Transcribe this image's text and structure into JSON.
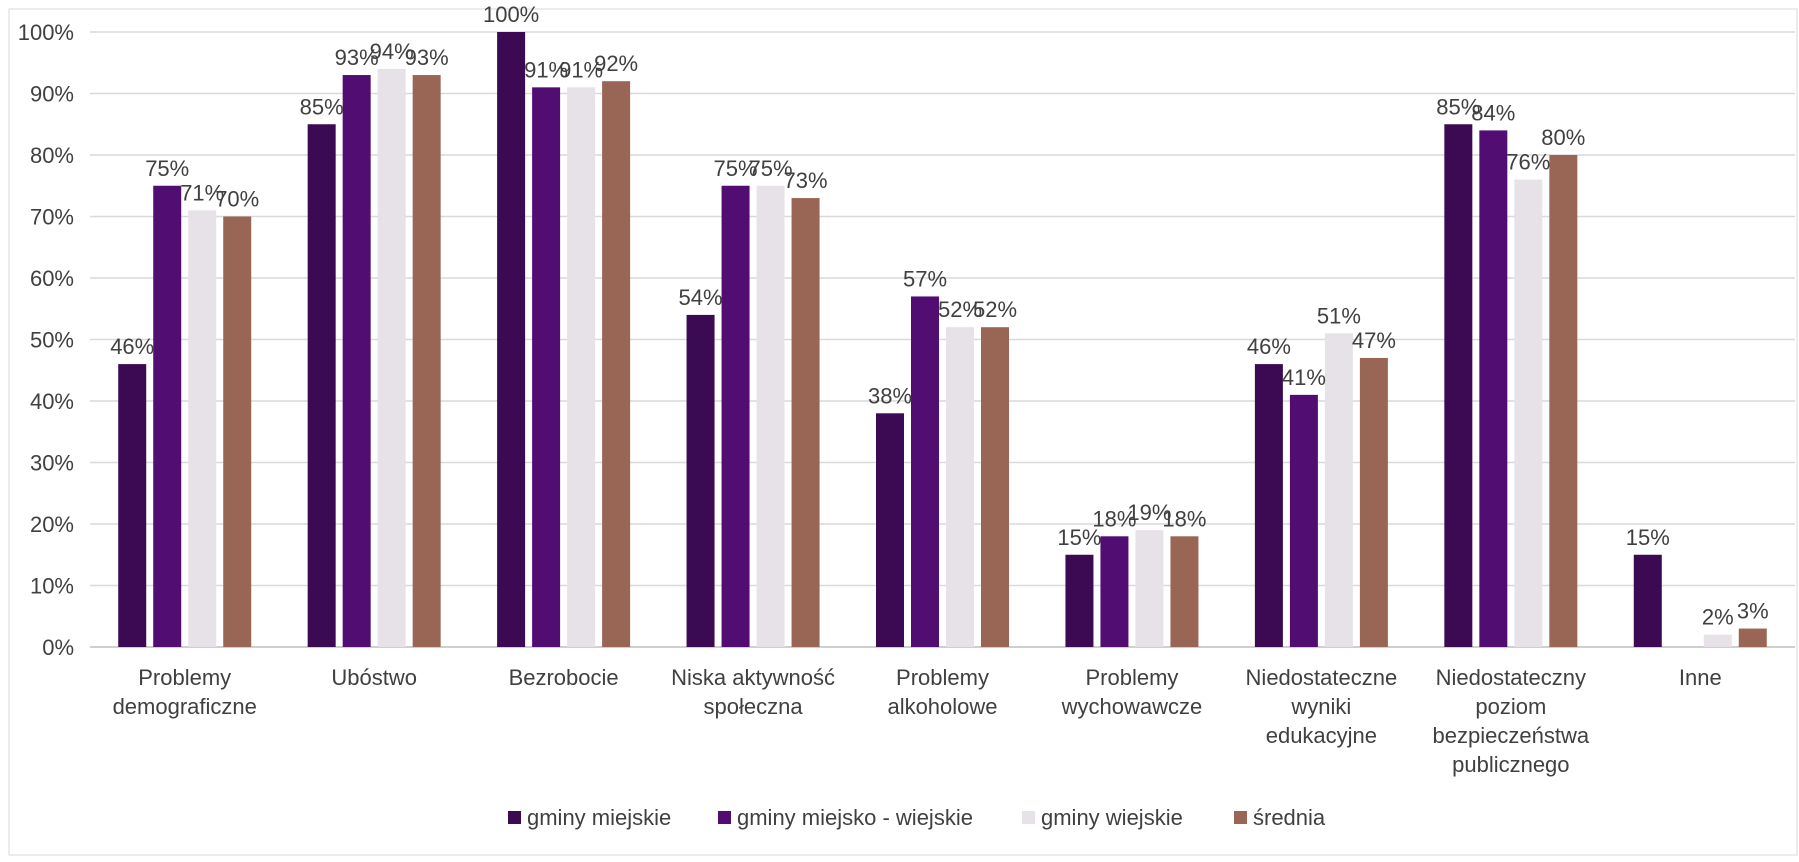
{
  "chart_data": {
    "type": "bar",
    "categories": [
      [
        "Problemy",
        "demograficzne"
      ],
      [
        "Ubóstwo"
      ],
      [
        "Bezrobocie"
      ],
      [
        "Niska aktywność",
        "społeczna"
      ],
      [
        "Problemy",
        "alkoholowe"
      ],
      [
        "Problemy",
        "wychowawcze"
      ],
      [
        "Niedostateczne",
        "wyniki",
        "edukacyjne"
      ],
      [
        "Niedostateczny",
        "poziom",
        "bezpieczeństwa",
        "publicznego"
      ],
      [
        "Inne"
      ]
    ],
    "series": [
      {
        "name": "gminy miejskie",
        "color": "#3b0a52",
        "values": [
          46,
          85,
          100,
          54,
          38,
          15,
          46,
          85,
          15
        ],
        "labels": [
          "46%",
          "85%",
          "100%",
          "54%",
          "38%",
          "15%",
          "46%",
          "85%",
          "15%"
        ]
      },
      {
        "name": "gminy miejsko - wiejskie",
        "color": "#520d73",
        "values": [
          75,
          93,
          91,
          75,
          57,
          18,
          41,
          84,
          0
        ],
        "labels": [
          "75%",
          "93%",
          "91%",
          "75%",
          "57%",
          "18%",
          "41%",
          "84%",
          ""
        ]
      },
      {
        "name": "gminy wiejskie",
        "color": "#e6e2e8",
        "values": [
          71,
          94,
          91,
          75,
          52,
          19,
          51,
          76,
          2
        ],
        "labels": [
          "71%",
          "94%",
          "91%",
          "75%",
          "52%",
          "19%",
          "51%",
          "76%",
          "2%"
        ]
      },
      {
        "name": "średnia",
        "color": "#996655",
        "values": [
          70,
          93,
          92,
          73,
          52,
          18,
          47,
          80,
          3
        ],
        "labels": [
          "70%",
          "93%",
          "92%",
          "73%",
          "52%",
          "18%",
          "47%",
          "80%",
          "3%"
        ]
      }
    ],
    "y_ticks": [
      "0%",
      "10%",
      "20%",
      "30%",
      "40%",
      "50%",
      "60%",
      "70%",
      "80%",
      "90%",
      "100%"
    ],
    "ylim": [
      0,
      100
    ],
    "grid": true,
    "legend_position": "bottom",
    "title": "",
    "xlabel": "",
    "ylabel": ""
  }
}
